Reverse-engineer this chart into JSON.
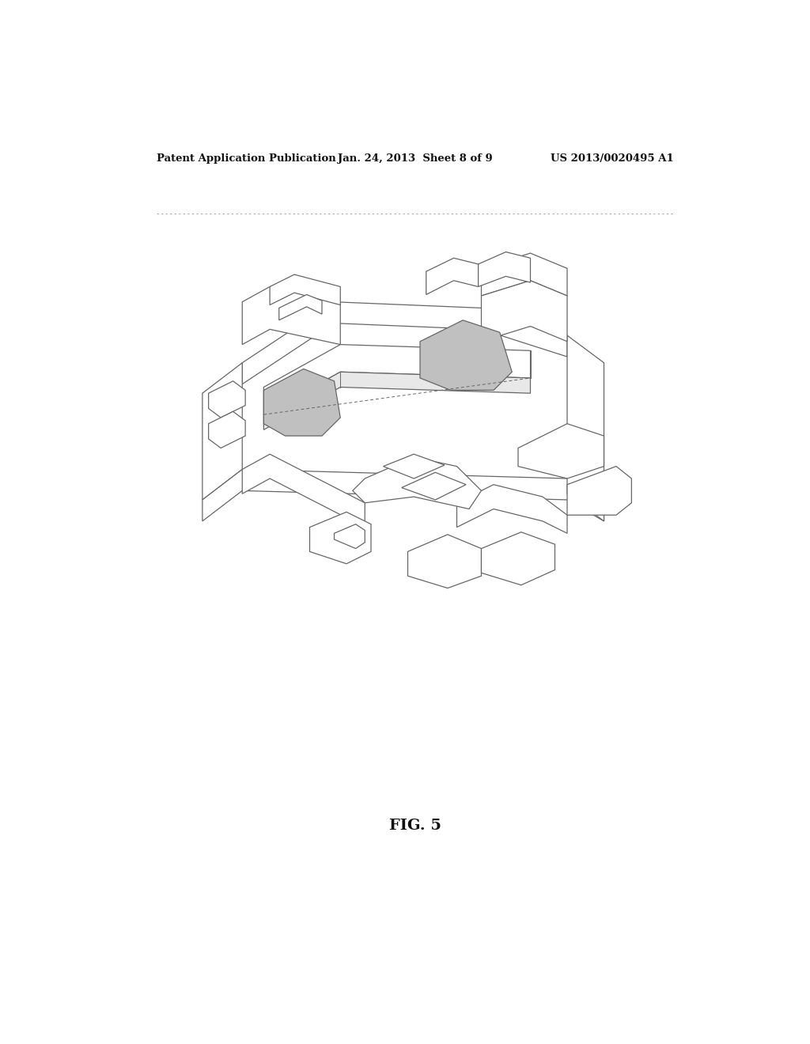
{
  "bg_color": "#ffffff",
  "header_left": "Patent Application Publication",
  "header_mid": "Jan. 24, 2013  Sheet 8 of 9",
  "header_right": "US 2013/0020495 A1",
  "fig_label": "FIG. 5",
  "line_color": "#666666",
  "gray_fill": "#c0c0c0",
  "white_fill": "#ffffff",
  "light_fill": "#f0f0f0"
}
